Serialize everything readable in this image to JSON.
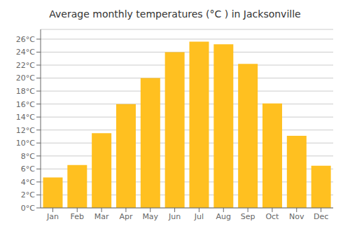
{
  "chart_data": {
    "type": "bar",
    "title": "Average monthly temperatures (°C ) in Jacksonville",
    "categories": [
      "Jan",
      "Feb",
      "Mar",
      "Apr",
      "May",
      "Jun",
      "Jul",
      "Aug",
      "Sep",
      "Oct",
      "Nov",
      "Dec"
    ],
    "values": [
      4.7,
      6.6,
      11.5,
      16.0,
      20.0,
      24.0,
      25.6,
      25.2,
      22.2,
      16.1,
      11.1,
      6.5
    ],
    "color": "#FFC020",
    "ylim": [
      0,
      27.5
    ],
    "yticks": [
      {
        "value": 0,
        "label": "0°C"
      },
      {
        "value": 2,
        "label": "2°C"
      },
      {
        "value": 4,
        "label": "4°C"
      },
      {
        "value": 6,
        "label": "6°C"
      },
      {
        "value": 8,
        "label": "8°C"
      },
      {
        "value": 10,
        "label": "10°C"
      },
      {
        "value": 12,
        "label": "12°C"
      },
      {
        "value": 14,
        "label": "14°C"
      },
      {
        "value": 16,
        "label": "16°C"
      },
      {
        "value": 18,
        "label": "18°C"
      },
      {
        "value": 20,
        "label": "20°C"
      },
      {
        "value": 22,
        "label": "22°C"
      },
      {
        "value": 24,
        "label": "24°C"
      },
      {
        "value": 26,
        "label": "26°C"
      }
    ],
    "grid": true
  }
}
